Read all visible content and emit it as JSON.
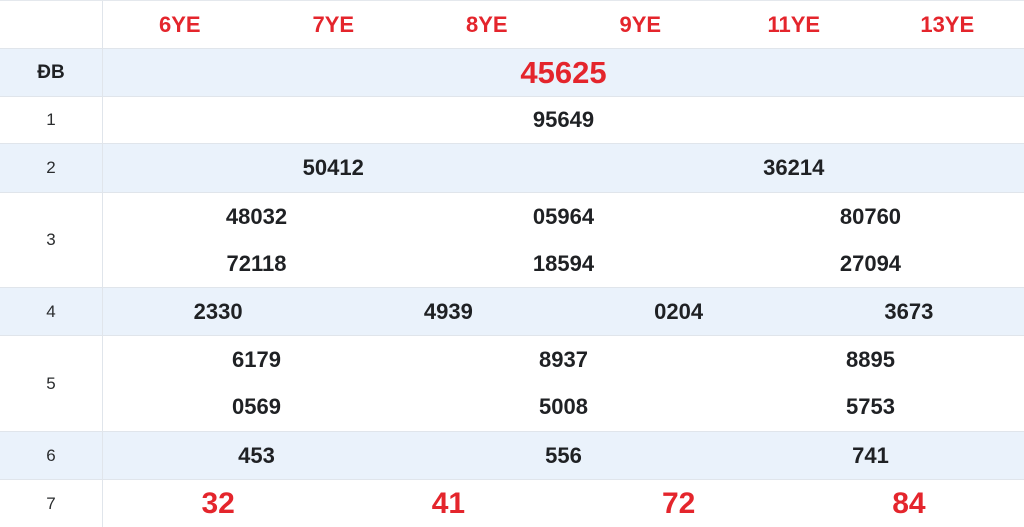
{
  "colors": {
    "accent_red": "#e4252c",
    "stripe_background": "#eaf2fb",
    "row_border": "#e0e5eb",
    "value_text": "#1f2124"
  },
  "columns": [
    "6YE",
    "7YE",
    "8YE",
    "9YE",
    "11YE",
    "13YE"
  ],
  "rows": [
    {
      "label": "ĐB",
      "lines": [
        [
          "45625"
        ]
      ]
    },
    {
      "label": "1",
      "lines": [
        [
          "95649"
        ]
      ]
    },
    {
      "label": "2",
      "lines": [
        [
          "50412",
          "36214"
        ]
      ]
    },
    {
      "label": "3",
      "lines": [
        [
          "48032",
          "05964",
          "80760"
        ],
        [
          "72118",
          "18594",
          "27094"
        ]
      ]
    },
    {
      "label": "4",
      "lines": [
        [
          "2330",
          "4939",
          "0204",
          "3673"
        ]
      ]
    },
    {
      "label": "5",
      "lines": [
        [
          "6179",
          "8937",
          "8895"
        ],
        [
          "0569",
          "5008",
          "5753"
        ]
      ]
    },
    {
      "label": "6",
      "lines": [
        [
          "453",
          "556",
          "741"
        ]
      ]
    },
    {
      "label": "7",
      "lines": [
        [
          "32",
          "41",
          "72",
          "84"
        ]
      ]
    }
  ]
}
